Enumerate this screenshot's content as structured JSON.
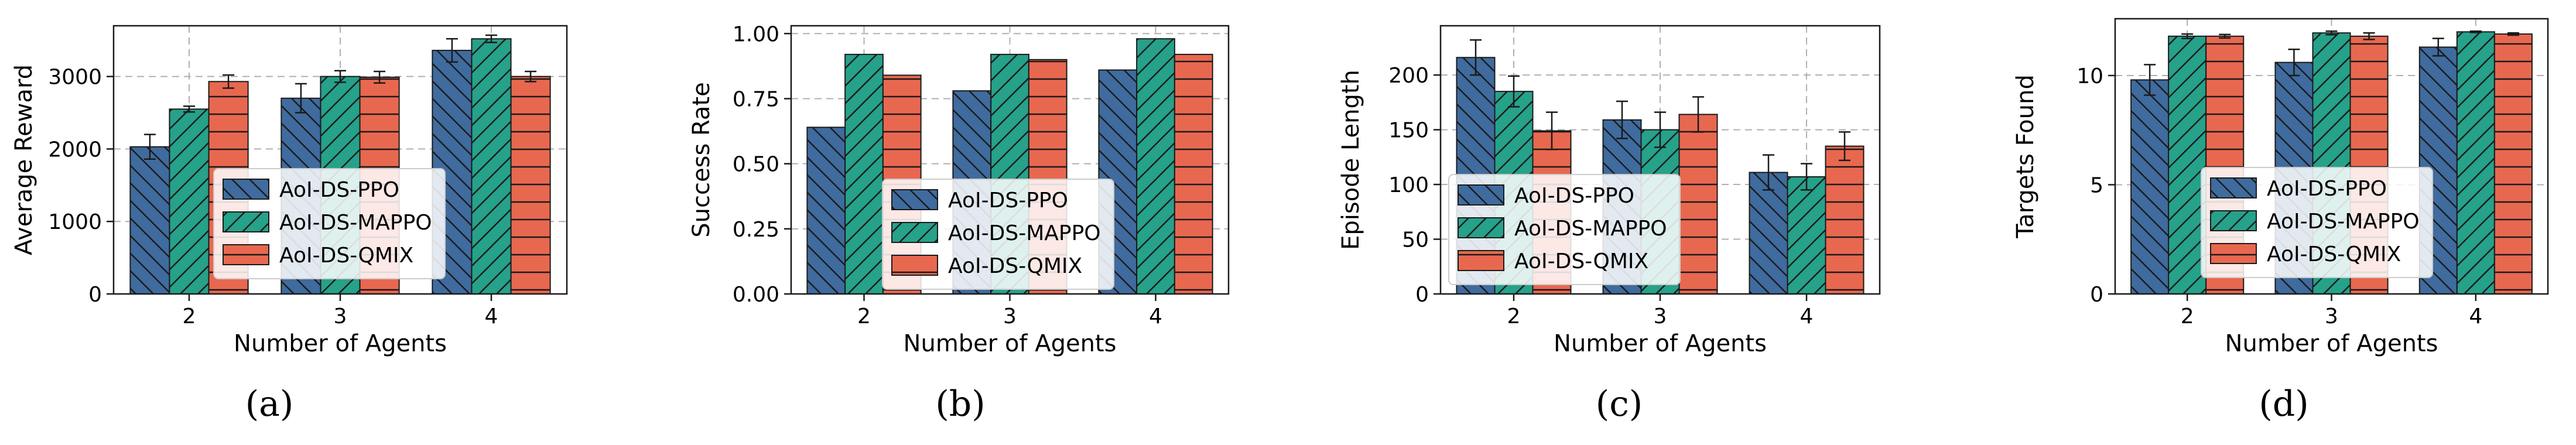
{
  "colors": {
    "AoI-DS-PPO": "#3F6B9E",
    "AoI-DS-MAPPO": "#26A18A",
    "AoI-DS-QMIX": "#E8684F"
  },
  "legend_entries": [
    "AoI-DS-PPO",
    "AoI-DS-MAPPO",
    "AoI-DS-QMIX"
  ],
  "chart_data": [
    {
      "type": "bar",
      "panel_label": "(a)",
      "categories": [
        "2",
        "3",
        "4"
      ],
      "xlabel": "Number of Agents",
      "ylabel": "Average Reward",
      "ylim": [
        0,
        3700
      ],
      "yticks": [
        0,
        1000,
        2000,
        3000
      ],
      "ytick_labels": [
        "0",
        "1000",
        "2000",
        "3000"
      ],
      "grid": true,
      "legend": "center",
      "series": [
        {
          "name": "AoI-DS-PPO",
          "values": [
            2030,
            2700,
            3360
          ],
          "errors": [
            170,
            200,
            160
          ]
        },
        {
          "name": "AoI-DS-MAPPO",
          "values": [
            2550,
            3000,
            3520
          ],
          "errors": [
            40,
            80,
            50
          ]
        },
        {
          "name": "AoI-DS-QMIX",
          "values": [
            2930,
            2990,
            3000
          ],
          "errors": [
            90,
            80,
            70
          ]
        }
      ]
    },
    {
      "type": "bar",
      "panel_label": "(b)",
      "categories": [
        "2",
        "3",
        "4"
      ],
      "xlabel": "Number of Agents",
      "ylabel": "Success Rate",
      "ylim": [
        0,
        1.03
      ],
      "yticks": [
        0,
        0.25,
        0.5,
        0.75,
        1.0
      ],
      "ytick_labels": [
        "0.00",
        "0.25",
        "0.50",
        "0.75",
        "1.00"
      ],
      "grid": true,
      "legend": "center-bottom",
      "series": [
        {
          "name": "AoI-DS-PPO",
          "values": [
            0.64,
            0.78,
            0.86
          ]
        },
        {
          "name": "AoI-DS-MAPPO",
          "values": [
            0.92,
            0.92,
            0.98
          ]
        },
        {
          "name": "AoI-DS-QMIX",
          "values": [
            0.84,
            0.9,
            0.92
          ]
        }
      ]
    },
    {
      "type": "bar",
      "panel_label": "(c)",
      "categories": [
        "2",
        "3",
        "4"
      ],
      "xlabel": "Number of Agents",
      "ylabel": "Episode Length",
      "ylim": [
        0,
        245
      ],
      "yticks": [
        0,
        50,
        100,
        150,
        200
      ],
      "ytick_labels": [
        "0",
        "50",
        "100",
        "150",
        "200"
      ],
      "grid": true,
      "legend": "center-left",
      "series": [
        {
          "name": "AoI-DS-PPO",
          "values": [
            216,
            159,
            111
          ],
          "errors": [
            16,
            17,
            16
          ]
        },
        {
          "name": "AoI-DS-MAPPO",
          "values": [
            185,
            150,
            107
          ],
          "errors": [
            14,
            16,
            12
          ]
        },
        {
          "name": "AoI-DS-QMIX",
          "values": [
            149,
            164,
            135
          ],
          "errors": [
            17,
            16,
            13
          ]
        }
      ]
    },
    {
      "type": "bar",
      "panel_label": "(d)",
      "categories": [
        "2",
        "3",
        "4"
      ],
      "xlabel": "Number of Agents",
      "ylabel": "Targets Found",
      "ylim": [
        0,
        12.6
      ],
      "yticks": [
        0,
        5,
        10
      ],
      "ytick_labels": [
        "0",
        "5",
        "10"
      ],
      "grid": true,
      "legend": "center",
      "series": [
        {
          "name": "AoI-DS-PPO",
          "values": [
            9.8,
            10.6,
            11.3
          ],
          "errors": [
            0.7,
            0.6,
            0.4
          ]
        },
        {
          "name": "AoI-DS-MAPPO",
          "values": [
            11.8,
            11.95,
            12.0
          ],
          "errors": [
            0.1,
            0.08,
            0.03
          ]
        },
        {
          "name": "AoI-DS-QMIX",
          "values": [
            11.8,
            11.8,
            11.9
          ],
          "errors": [
            0.08,
            0.15,
            0.05
          ]
        }
      ]
    }
  ]
}
